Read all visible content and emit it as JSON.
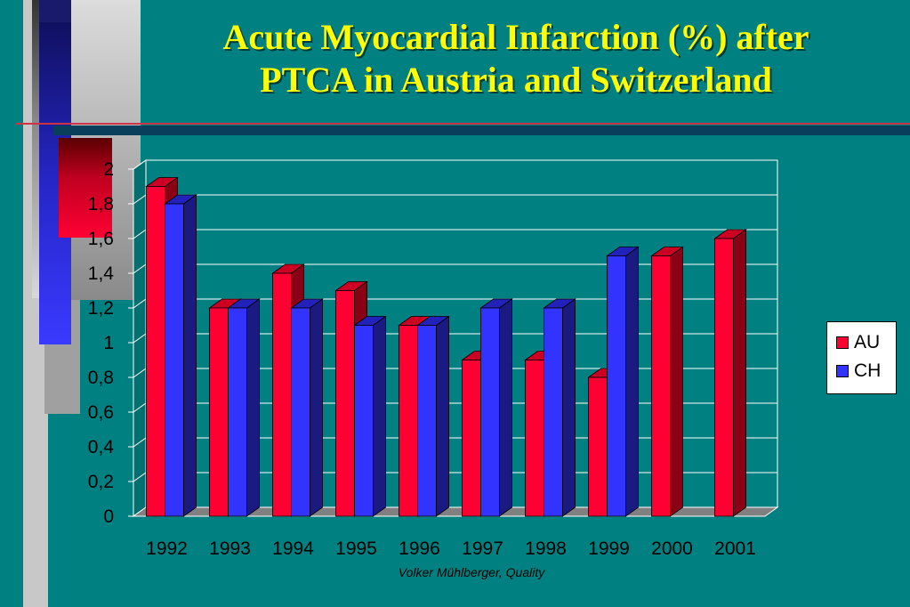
{
  "slide": {
    "title_line1": "Acute Myocardial Infarction (%) after",
    "title_line2": "PTCA in Austria and Switzerland",
    "footer": "Volker Mühlberger, Quality"
  },
  "colors": {
    "background": "#008080",
    "title": "#ffff00",
    "au_front": "#ff0033",
    "ch_front": "#3333ff",
    "plot_bg": "#008080"
  },
  "chart_data": {
    "type": "bar",
    "title": "",
    "xlabel": "",
    "ylabel": "",
    "categories": [
      "1992",
      "1993",
      "1994",
      "1995",
      "1996",
      "1997",
      "1998",
      "1999",
      "2000",
      "2001"
    ],
    "series": [
      {
        "name": "AU",
        "values": [
          1.9,
          1.2,
          1.4,
          1.3,
          1.1,
          0.9,
          0.9,
          0.8,
          1.5,
          1.6
        ]
      },
      {
        "name": "CH",
        "values": [
          1.8,
          1.2,
          1.2,
          1.1,
          1.1,
          1.2,
          1.2,
          1.5,
          null,
          null
        ]
      }
    ],
    "ylim": [
      0,
      2
    ],
    "yticks": [
      "0",
      "0,2",
      "0,4",
      "0,6",
      "0,8",
      "1",
      "1,2",
      "1,4",
      "1,6",
      "1,8",
      "2"
    ],
    "grid": true,
    "legend_position": "right",
    "three_d": true
  }
}
